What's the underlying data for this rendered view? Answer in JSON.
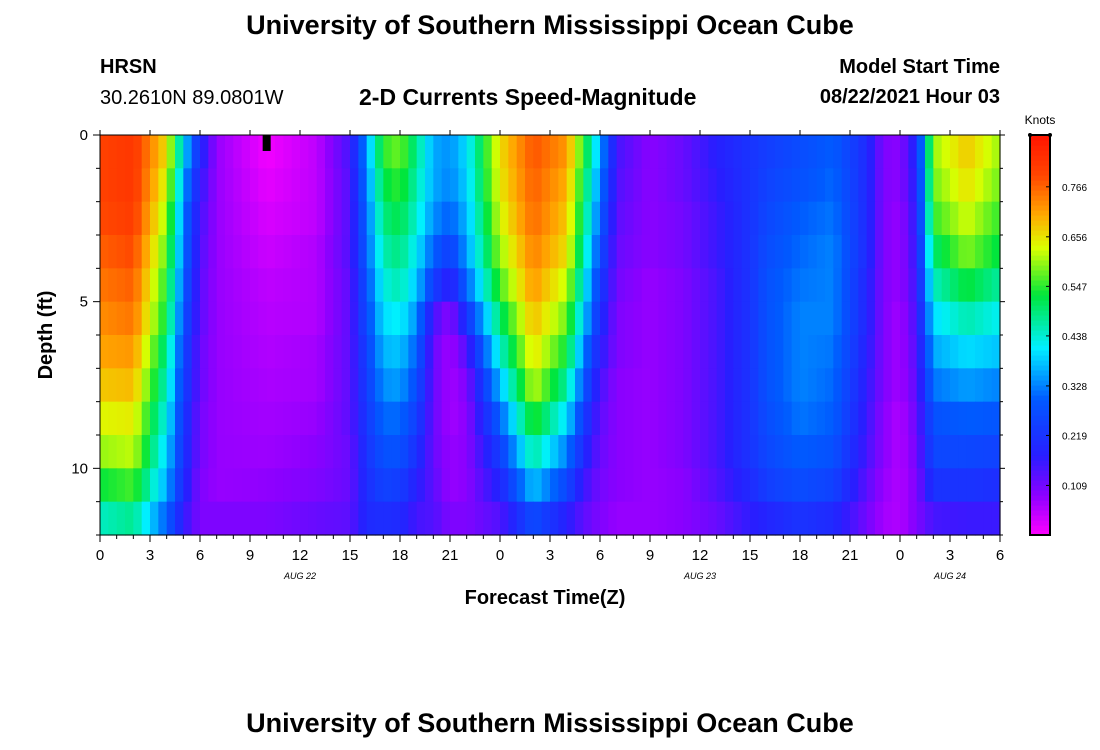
{
  "page": {
    "top_title": "University of Southern Mississippi Ocean Cube",
    "bottom_title": "University of Southern Mississippi Ocean Cube"
  },
  "header": {
    "station": "HRSN",
    "coordinates": "30.2610N  89.0801W",
    "chart_title": "2-D Currents Speed-Magnitude",
    "model_label": "Model Start Time",
    "model_time": "08/22/2021 Hour 03"
  },
  "chart_data": {
    "type": "heatmap",
    "title": "2-D Currents Speed-Magnitude",
    "xlabel": "Forecast Time(Z)",
    "ylabel": "Depth (ft)",
    "x_range_hours": [
      0,
      54
    ],
    "y_range_ft": [
      0,
      12
    ],
    "x_ticks": [
      {
        "hour": 0,
        "label": "0"
      },
      {
        "hour": 3,
        "label": "3"
      },
      {
        "hour": 6,
        "label": "6"
      },
      {
        "hour": 9,
        "label": "9"
      },
      {
        "hour": 12,
        "label": "12"
      },
      {
        "hour": 15,
        "label": "15"
      },
      {
        "hour": 18,
        "label": "18"
      },
      {
        "hour": 21,
        "label": "21"
      },
      {
        "hour": 24,
        "label": "0"
      },
      {
        "hour": 27,
        "label": "3"
      },
      {
        "hour": 30,
        "label": "6"
      },
      {
        "hour": 33,
        "label": "9"
      },
      {
        "hour": 36,
        "label": "12"
      },
      {
        "hour": 39,
        "label": "15"
      },
      {
        "hour": 42,
        "label": "18"
      },
      {
        "hour": 45,
        "label": "21"
      },
      {
        "hour": 48,
        "label": "0"
      },
      {
        "hour": 51,
        "label": "3"
      },
      {
        "hour": 54,
        "label": "6"
      }
    ],
    "date_labels": [
      {
        "hour": 12,
        "label": "AUG 22"
      },
      {
        "hour": 36,
        "label": "AUG 23"
      },
      {
        "hour": 51,
        "label": "AUG 24"
      }
    ],
    "y_ticks": [
      {
        "depth": 0,
        "label": "0"
      },
      {
        "depth": 5,
        "label": "5"
      },
      {
        "depth": 10,
        "label": "10"
      }
    ],
    "current_time_marker_hour": 10,
    "depth_levels_ft": [
      0.5,
      1.5,
      2.5,
      3.5,
      4.5,
      5.5,
      6.5,
      7.5,
      8.5,
      9.5,
      10.5,
      11.5
    ],
    "time_knots": [
      {
        "hour": 0,
        "speed": [
          0.8,
          0.8,
          0.79,
          0.77,
          0.75,
          0.73,
          0.71,
          0.68,
          0.64,
          0.6,
          0.53,
          0.45
        ]
      },
      {
        "hour": 2,
        "speed": [
          0.82,
          0.82,
          0.81,
          0.79,
          0.77,
          0.75,
          0.72,
          0.69,
          0.65,
          0.62,
          0.56,
          0.48
        ]
      },
      {
        "hour": 4,
        "speed": [
          0.66,
          0.63,
          0.6,
          0.57,
          0.54,
          0.52,
          0.48,
          0.45,
          0.42,
          0.39,
          0.36,
          0.3
        ]
      },
      {
        "hour": 5,
        "speed": [
          0.4,
          0.36,
          0.33,
          0.32,
          0.3,
          0.28,
          0.26,
          0.25,
          0.23,
          0.22,
          0.2,
          0.17
        ]
      },
      {
        "hour": 6,
        "speed": [
          0.2,
          0.17,
          0.15,
          0.14,
          0.13,
          0.13,
          0.12,
          0.12,
          0.11,
          0.11,
          0.1,
          0.1
        ]
      },
      {
        "hour": 7,
        "speed": [
          0.08,
          0.08,
          0.08,
          0.08,
          0.08,
          0.08,
          0.08,
          0.08,
          0.08,
          0.08,
          0.08,
          0.1
        ]
      },
      {
        "hour": 10,
        "speed": [
          0.01,
          0.02,
          0.03,
          0.04,
          0.05,
          0.055,
          0.06,
          0.065,
          0.07,
          0.075,
          0.085,
          0.1
        ]
      },
      {
        "hour": 13,
        "speed": [
          0.05,
          0.05,
          0.05,
          0.06,
          0.06,
          0.06,
          0.07,
          0.07,
          0.08,
          0.09,
          0.1,
          0.12
        ]
      },
      {
        "hour": 15,
        "speed": [
          0.15,
          0.14,
          0.14,
          0.14,
          0.13,
          0.13,
          0.13,
          0.13,
          0.13,
          0.12,
          0.12,
          0.13
        ]
      },
      {
        "hour": 16,
        "speed": [
          0.35,
          0.33,
          0.31,
          0.3,
          0.28,
          0.27,
          0.25,
          0.24,
          0.23,
          0.22,
          0.21,
          0.2
        ]
      },
      {
        "hour": 17,
        "speed": [
          0.55,
          0.52,
          0.49,
          0.46,
          0.43,
          0.4,
          0.37,
          0.34,
          0.31,
          0.28,
          0.25,
          0.21
        ]
      },
      {
        "hour": 18,
        "speed": [
          0.58,
          0.55,
          0.52,
          0.49,
          0.46,
          0.42,
          0.38,
          0.35,
          0.31,
          0.28,
          0.24,
          0.2
        ]
      },
      {
        "hour": 19,
        "speed": [
          0.48,
          0.46,
          0.44,
          0.41,
          0.38,
          0.34,
          0.3,
          0.27,
          0.24,
          0.21,
          0.18,
          0.15
        ]
      },
      {
        "hour": 20,
        "speed": [
          0.36,
          0.36,
          0.34,
          0.3,
          0.24,
          0.15,
          0.12,
          0.12,
          0.12,
          0.12,
          0.13,
          0.14
        ]
      },
      {
        "hour": 21,
        "speed": [
          0.34,
          0.33,
          0.3,
          0.24,
          0.17,
          0.09,
          0.07,
          0.07,
          0.07,
          0.08,
          0.08,
          0.1
        ]
      },
      {
        "hour": 22,
        "speed": [
          0.4,
          0.39,
          0.37,
          0.35,
          0.3,
          0.22,
          0.14,
          0.1,
          0.09,
          0.09,
          0.09,
          0.1
        ]
      },
      {
        "hour": 24,
        "speed": [
          0.66,
          0.65,
          0.63,
          0.6,
          0.56,
          0.5,
          0.44,
          0.37,
          0.3,
          0.24,
          0.19,
          0.14
        ]
      },
      {
        "hour": 26,
        "speed": [
          0.78,
          0.77,
          0.76,
          0.74,
          0.72,
          0.69,
          0.66,
          0.62,
          0.55,
          0.47,
          0.38,
          0.27
        ]
      },
      {
        "hour": 28,
        "speed": [
          0.72,
          0.7,
          0.68,
          0.66,
          0.62,
          0.58,
          0.53,
          0.47,
          0.4,
          0.33,
          0.26,
          0.18
        ]
      },
      {
        "hour": 29,
        "speed": [
          0.55,
          0.52,
          0.5,
          0.47,
          0.43,
          0.39,
          0.34,
          0.29,
          0.24,
          0.2,
          0.16,
          0.13
        ]
      },
      {
        "hour": 30,
        "speed": [
          0.36,
          0.33,
          0.3,
          0.27,
          0.24,
          0.21,
          0.18,
          0.15,
          0.13,
          0.12,
          0.11,
          0.1
        ]
      },
      {
        "hour": 31,
        "speed": [
          0.15,
          0.14,
          0.13,
          0.12,
          0.11,
          0.1,
          0.1,
          0.09,
          0.09,
          0.09,
          0.09,
          0.08
        ]
      },
      {
        "hour": 33,
        "speed": [
          0.09,
          0.09,
          0.09,
          0.09,
          0.08,
          0.08,
          0.08,
          0.08,
          0.08,
          0.08,
          0.08,
          0.08
        ]
      },
      {
        "hour": 35,
        "speed": [
          0.12,
          0.12,
          0.11,
          0.11,
          0.1,
          0.1,
          0.1,
          0.1,
          0.1,
          0.1,
          0.09,
          0.09
        ]
      },
      {
        "hour": 37,
        "speed": [
          0.18,
          0.17,
          0.16,
          0.16,
          0.15,
          0.15,
          0.15,
          0.15,
          0.15,
          0.15,
          0.14,
          0.12
        ]
      },
      {
        "hour": 39,
        "speed": [
          0.22,
          0.22,
          0.22,
          0.22,
          0.22,
          0.22,
          0.22,
          0.22,
          0.22,
          0.22,
          0.2,
          0.17
        ]
      },
      {
        "hour": 40,
        "speed": [
          0.24,
          0.25,
          0.26,
          0.27,
          0.28,
          0.28,
          0.28,
          0.28,
          0.27,
          0.26,
          0.24,
          0.19
        ]
      },
      {
        "hour": 42,
        "speed": [
          0.27,
          0.28,
          0.3,
          0.31,
          0.32,
          0.33,
          0.33,
          0.33,
          0.32,
          0.3,
          0.27,
          0.22
        ]
      },
      {
        "hour": 44,
        "speed": [
          0.3,
          0.31,
          0.32,
          0.33,
          0.33,
          0.33,
          0.32,
          0.31,
          0.3,
          0.28,
          0.25,
          0.2
        ]
      },
      {
        "hour": 46,
        "speed": [
          0.2,
          0.2,
          0.2,
          0.2,
          0.19,
          0.19,
          0.18,
          0.17,
          0.16,
          0.15,
          0.13,
          0.11
        ]
      },
      {
        "hour": 47,
        "speed": [
          0.1,
          0.1,
          0.1,
          0.1,
          0.1,
          0.1,
          0.1,
          0.1,
          0.09,
          0.09,
          0.08,
          0.07
        ]
      },
      {
        "hour": 48,
        "speed": [
          0.09,
          0.09,
          0.08,
          0.08,
          0.08,
          0.07,
          0.07,
          0.07,
          0.06,
          0.06,
          0.06,
          0.06
        ]
      },
      {
        "hour": 49,
        "speed": [
          0.2,
          0.19,
          0.18,
          0.17,
          0.16,
          0.15,
          0.14,
          0.13,
          0.12,
          0.11,
          0.1,
          0.1
        ]
      },
      {
        "hour": 50,
        "speed": [
          0.6,
          0.58,
          0.55,
          0.5,
          0.45,
          0.4,
          0.36,
          0.32,
          0.28,
          0.26,
          0.22,
          0.15
        ]
      },
      {
        "hour": 52,
        "speed": [
          0.68,
          0.66,
          0.63,
          0.59,
          0.53,
          0.46,
          0.4,
          0.35,
          0.3,
          0.26,
          0.22,
          0.16
        ]
      },
      {
        "hour": 54,
        "speed": [
          0.6,
          0.58,
          0.55,
          0.52,
          0.47,
          0.42,
          0.38,
          0.33,
          0.29,
          0.25,
          0.21,
          0.16
        ]
      }
    ],
    "colorbar": {
      "unit": "Knots",
      "min": 0,
      "max": 0.88,
      "tick_values": [
        0.109,
        0.219,
        0.328,
        0.438,
        0.547,
        0.656,
        0.766
      ],
      "tick_labels": [
        "0.109",
        "0.219",
        "0.328",
        "0.438",
        "0.547",
        "0.656",
        "0.766"
      ]
    }
  }
}
